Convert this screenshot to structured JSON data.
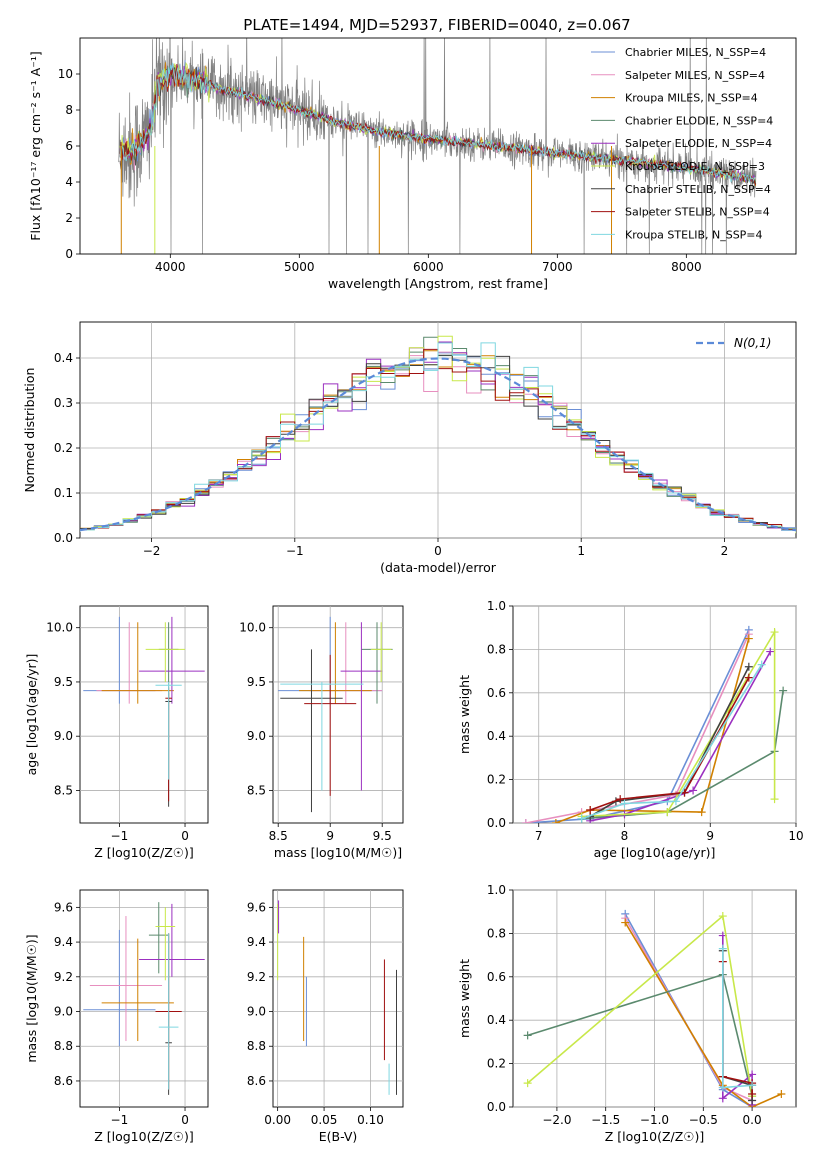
{
  "figure": {
    "title": "PLATE=1494, MJD=52937, FIBERID=0040, z=0.067"
  },
  "chart_data": [
    {
      "id": "spectrum",
      "type": "line",
      "xlabel": "wavelength [Angstrom, rest frame]",
      "ylabel": "Flux [fλ10⁻¹⁷ erg cm⁻² s⁻¹ A⁻¹]",
      "xlim": [
        3300,
        8850
      ],
      "ylim": [
        0,
        12
      ],
      "xticks": [
        4000,
        5000,
        6000,
        7000,
        8000
      ],
      "yticks": [
        0,
        2,
        4,
        6,
        8,
        10
      ],
      "grid": false,
      "legend_position": "top-right",
      "data_color": "#808080",
      "data_range": [
        3600,
        8540
      ],
      "continuum": {
        "x": [
          3600,
          3650,
          3700,
          3750,
          3800,
          3850,
          3900,
          3950,
          4000,
          4100,
          4200,
          4300,
          4400,
          4500,
          4700,
          5000,
          5300,
          5600,
          6000,
          6500,
          7000,
          7500,
          8000,
          8500,
          8540
        ],
        "y": [
          5.6,
          5.8,
          5.7,
          6.0,
          6.3,
          7.2,
          9.2,
          9.8,
          10.0,
          9.8,
          9.7,
          9.4,
          9.1,
          9.0,
          8.6,
          8.0,
          7.3,
          6.8,
          6.4,
          6.0,
          5.6,
          5.2,
          4.8,
          4.2,
          4.0
        ]
      },
      "series": [
        {
          "name": "Chabrier MILES, N_SSP=4",
          "color": "#6b8fd6"
        },
        {
          "name": "Salpeter MILES, N_SSP=4",
          "color": "#e78fbf"
        },
        {
          "name": "Kroupa MILES, N_SSP=4",
          "color": "#d08000"
        },
        {
          "name": "Chabrier ELODIE, N_SSP=4",
          "color": "#5b8a6e"
        },
        {
          "name": "Salpeter ELODIE, N_SSP=4",
          "color": "#9b30c0"
        },
        {
          "name": "Kroupa ELODIE, N_SSP=3",
          "color": "#c8e84a"
        },
        {
          "name": "Chabrier STELIB, N_SSP=4",
          "color": "#404040"
        },
        {
          "name": "Salpeter STELIB, N_SSP=4",
          "color": "#a01010"
        },
        {
          "name": "Kroupa STELIB, N_SSP=4",
          "color": "#7fd7e0"
        }
      ]
    },
    {
      "id": "residuals",
      "type": "bar",
      "xlabel": "(data-model)/error",
      "ylabel": "Normed distribution",
      "xlim": [
        -2.5,
        2.5
      ],
      "ylim": [
        0,
        0.48
      ],
      "xticks": [
        -2,
        -1,
        0,
        1,
        2
      ],
      "yticks": [
        0.0,
        0.1,
        0.2,
        0.3,
        0.4
      ],
      "grid": true,
      "legend_position": "top-right",
      "bin_width": 0.1,
      "gaussian": {
        "name": "N(0,1)",
        "color": "#5b8ad8",
        "mu": 0,
        "sigma": 1
      }
    },
    {
      "id": "age_vs_Z",
      "type": "scatter",
      "xlabel": "Z [log10(Z/Z☉)]",
      "ylabel": "age  [log10(age/yr)]",
      "xlim": [
        -1.6,
        0.35
      ],
      "ylim": [
        8.2,
        10.2
      ],
      "xticks": [
        -1,
        0
      ],
      "yticks": [
        8.5,
        9.0,
        9.5,
        10.0
      ],
      "grid": true,
      "points": [
        {
          "x": -1.0,
          "y": 9.42,
          "xerr": 0.55,
          "yerr": [
            9.3,
            10.1
          ],
          "color": "#6b8fd6"
        },
        {
          "x": -0.85,
          "y": 9.42,
          "xerr": 0.5,
          "yerr": [
            9.3,
            10.05
          ],
          "color": "#e78fbf"
        },
        {
          "x": -0.72,
          "y": 9.42,
          "xerr": 0.55,
          "yerr": [
            9.3,
            10.05
          ],
          "color": "#d08000"
        },
        {
          "x": -0.25,
          "y": 9.8,
          "xerr": 0.15,
          "yerr": [
            9.3,
            10.05
          ],
          "color": "#5b8a6e"
        },
        {
          "x": -0.2,
          "y": 9.6,
          "xerr": 0.5,
          "yerr": [
            9.3,
            10.1
          ],
          "color": "#9b30c0"
        },
        {
          "x": -0.3,
          "y": 9.8,
          "xerr": 0.3,
          "yerr": [
            9.5,
            10.05
          ],
          "color": "#c8e84a"
        },
        {
          "x": -0.25,
          "y": 9.32,
          "xerr": 0.05,
          "yerr": [
            8.35,
            9.4
          ],
          "color": "#404040"
        },
        {
          "x": -0.25,
          "y": 9.35,
          "xerr": 0.05,
          "yerr": [
            8.4,
            9.45
          ],
          "color": "#a01010"
        },
        {
          "x": -0.25,
          "y": 9.47,
          "xerr": 0.2,
          "yerr": [
            8.6,
            9.5
          ],
          "color": "#7fd7e0"
        }
      ]
    },
    {
      "id": "age_vs_mass",
      "type": "scatter",
      "xlabel": "mass [log10(M/M☉)]",
      "ylabel": "",
      "xlim": [
        8.45,
        9.7
      ],
      "ylim": [
        8.2,
        10.2
      ],
      "xticks": [
        8.5,
        9.0,
        9.5
      ],
      "yticks": [
        8.5,
        9.0,
        9.5,
        10.0
      ],
      "grid": true,
      "points": [
        {
          "x": 9.0,
          "y": 9.42,
          "xerr": 0.5,
          "yerr": [
            9.3,
            10.1
          ],
          "color": "#6b8fd6"
        },
        {
          "x": 9.15,
          "y": 9.42,
          "xerr": 0.35,
          "yerr": [
            9.3,
            10.05
          ],
          "color": "#e78fbf"
        },
        {
          "x": 9.05,
          "y": 9.42,
          "xerr": 0.35,
          "yerr": [
            9.3,
            10.05
          ],
          "color": "#d08000"
        },
        {
          "x": 9.45,
          "y": 9.8,
          "xerr": 0.15,
          "yerr": [
            9.3,
            10.05
          ],
          "color": "#5b8a6e"
        },
        {
          "x": 9.3,
          "y": 9.6,
          "xerr": 0.2,
          "yerr": [
            8.5,
            10.05
          ],
          "color": "#9b30c0"
        },
        {
          "x": 9.49,
          "y": 9.8,
          "xerr": 0.1,
          "yerr": [
            9.5,
            10.05
          ],
          "color": "#c8e84a"
        },
        {
          "x": 8.82,
          "y": 9.35,
          "xerr": 0.3,
          "yerr": [
            8.3,
            9.8
          ],
          "color": "#404040"
        },
        {
          "x": 9.0,
          "y": 9.3,
          "xerr": 0.25,
          "yerr": [
            8.45,
            9.75
          ],
          "color": "#a01010"
        },
        {
          "x": 8.92,
          "y": 9.48,
          "xerr": 0.4,
          "yerr": [
            8.5,
            9.5
          ],
          "color": "#7fd7e0"
        }
      ]
    },
    {
      "id": "weight_vs_age",
      "type": "line",
      "xlabel": "age  [log10(age/yr)]",
      "ylabel": "mass weight",
      "xlim": [
        6.7,
        10.0
      ],
      "ylim": [
        0,
        1.0
      ],
      "xticks": [
        7,
        8,
        9,
        10
      ],
      "yticks": [
        0.0,
        0.2,
        0.4,
        0.6,
        0.8,
        1.0
      ],
      "grid": true,
      "series": [
        {
          "color": "#6b8fd6",
          "x": [
            6.85,
            7.6,
            8.5,
            9.45
          ],
          "y": [
            0.0,
            0.02,
            0.1,
            0.89
          ]
        },
        {
          "color": "#e78fbf",
          "x": [
            6.85,
            7.5,
            8.6,
            9.45
          ],
          "y": [
            0.0,
            0.05,
            0.13,
            0.87
          ]
        },
        {
          "color": "#d08000",
          "x": [
            7.2,
            7.6,
            8.9,
            9.45
          ],
          "y": [
            0.0,
            0.06,
            0.05,
            0.85
          ]
        },
        {
          "color": "#5b8a6e",
          "x": [
            7.5,
            8.5,
            9.75,
            9.85
          ],
          "y": [
            0.02,
            0.05,
            0.33,
            0.61
          ]
        },
        {
          "color": "#9b30c0",
          "x": [
            7.6,
            8.0,
            8.8,
            9.7
          ],
          "y": [
            0.01,
            0.04,
            0.15,
            0.79
          ]
        },
        {
          "color": "#c8e84a",
          "x": [
            7.5,
            8.5,
            9.75,
            9.75
          ],
          "y": [
            0.03,
            0.05,
            0.88,
            0.11
          ]
        },
        {
          "color": "#404040",
          "x": [
            7.6,
            7.9,
            8.7,
            9.45
          ],
          "y": [
            0.03,
            0.1,
            0.14,
            0.72
          ]
        },
        {
          "color": "#a01010",
          "x": [
            7.6,
            7.95,
            8.7,
            9.45
          ],
          "y": [
            0.06,
            0.11,
            0.14,
            0.67
          ]
        },
        {
          "color": "#7fd7e0",
          "x": [
            7.5,
            8.0,
            8.6,
            9.6
          ],
          "y": [
            0.02,
            0.09,
            0.1,
            0.73
          ]
        }
      ]
    },
    {
      "id": "mass_vs_Z",
      "type": "scatter",
      "xlabel": "Z [log10(Z/Z☉)]",
      "ylabel": "mass [log10(M/M☉)]",
      "xlim": [
        -1.6,
        0.35
      ],
      "ylim": [
        8.45,
        9.7
      ],
      "xticks": [
        -1,
        0
      ],
      "yticks": [
        8.6,
        8.8,
        9.0,
        9.2,
        9.4,
        9.6
      ],
      "grid": true,
      "points": [
        {
          "x": -1.0,
          "y": 9.01,
          "xerr": 0.55,
          "yerr": [
            8.8,
            9.47
          ],
          "color": "#6b8fd6"
        },
        {
          "x": -0.9,
          "y": 9.15,
          "xerr": 0.55,
          "yerr": [
            8.83,
            9.55
          ],
          "color": "#e78fbf"
        },
        {
          "x": -0.72,
          "y": 9.05,
          "xerr": 0.55,
          "yerr": [
            8.83,
            9.42
          ],
          "color": "#d08000"
        },
        {
          "x": -0.4,
          "y": 9.44,
          "xerr": 0.15,
          "yerr": [
            9.22,
            9.63
          ],
          "color": "#5b8a6e"
        },
        {
          "x": -0.2,
          "y": 9.3,
          "xerr": 0.5,
          "yerr": [
            9.2,
            9.62
          ],
          "color": "#9b30c0"
        },
        {
          "x": -0.3,
          "y": 9.49,
          "xerr": 0.15,
          "yerr": [
            9.18,
            9.6
          ],
          "color": "#c8e84a"
        },
        {
          "x": -0.25,
          "y": 8.82,
          "xerr": 0.05,
          "yerr": [
            8.52,
            9.45
          ],
          "color": "#404040"
        },
        {
          "x": -0.25,
          "y": 9.0,
          "xerr": 0.2,
          "yerr": [
            8.55,
            9.45
          ],
          "color": "#a01010"
        },
        {
          "x": -0.25,
          "y": 8.91,
          "xerr": 0.15,
          "yerr": [
            8.55,
            9.45
          ],
          "color": "#7fd7e0"
        }
      ]
    },
    {
      "id": "mass_vs_EBV",
      "type": "scatter",
      "xlabel": "E(B-V)",
      "ylabel": "",
      "xlim": [
        -0.005,
        0.135
      ],
      "ylim": [
        8.45,
        9.7
      ],
      "xticks": [
        0.0,
        0.05,
        0.1
      ],
      "xticklabels": [
        "0.00",
        "0.05",
        "0.10"
      ],
      "yticks": [
        8.6,
        8.8,
        9.0,
        9.2,
        9.4,
        9.6
      ],
      "grid": true,
      "segments": [
        {
          "x": 0.0,
          "y": [
            9.18,
            9.62
          ],
          "color": "#c8e84a"
        },
        {
          "x": 0.001,
          "y": [
            9.45,
            9.64
          ],
          "color": "#9b30c0"
        },
        {
          "x": 0.028,
          "y": [
            8.83,
            9.43
          ],
          "color": "#d08000"
        },
        {
          "x": 0.031,
          "y": [
            8.8,
            9.2
          ],
          "color": "#6b8fd6"
        },
        {
          "x": 0.115,
          "y": [
            8.72,
            9.3
          ],
          "color": "#a01010"
        },
        {
          "x": 0.12,
          "y": [
            8.52,
            8.7
          ],
          "color": "#7fd7e0"
        },
        {
          "x": 0.128,
          "y": [
            8.52,
            9.24
          ],
          "color": "#404040"
        }
      ]
    },
    {
      "id": "weight_vs_Z",
      "type": "line",
      "xlabel": "Z [log10(Z/Z☉)]",
      "ylabel": "mass weight",
      "xlim": [
        -2.45,
        0.45
      ],
      "ylim": [
        0,
        1.0
      ],
      "xticks": [
        -2.0,
        -1.5,
        -1.0,
        -0.5,
        0.0
      ],
      "xticklabels": [
        "−2.0",
        "−1.5",
        "−1.0",
        "−0.5",
        "0.0"
      ],
      "yticks": [
        0.0,
        0.2,
        0.4,
        0.6,
        0.8,
        1.0
      ],
      "grid": true,
      "series": [
        {
          "color": "#6b8fd6",
          "x": [
            -1.3,
            -0.3,
            0.0
          ],
          "y": [
            0.89,
            0.08,
            0.0
          ]
        },
        {
          "color": "#e78fbf",
          "x": [
            -1.3,
            -0.3,
            0.0
          ],
          "y": [
            0.87,
            0.09,
            0.03
          ]
        },
        {
          "color": "#d08000",
          "x": [
            -1.3,
            -0.3,
            0.0,
            0.3
          ],
          "y": [
            0.85,
            0.1,
            0.0,
            0.06
          ]
        },
        {
          "color": "#5b8a6e",
          "x": [
            -2.3,
            -0.3,
            0.0
          ],
          "y": [
            0.33,
            0.61,
            0.05
          ]
        },
        {
          "color": "#9b30c0",
          "x": [
            -0.3,
            -0.3,
            0.0,
            0.0
          ],
          "y": [
            0.79,
            0.04,
            0.15,
            0.01
          ]
        },
        {
          "color": "#c8e84a",
          "x": [
            -2.3,
            -0.3,
            0.0
          ],
          "y": [
            0.11,
            0.88,
            0.05
          ]
        },
        {
          "color": "#404040",
          "x": [
            -0.3,
            -0.3,
            0.0,
            0.0
          ],
          "y": [
            0.72,
            0.14,
            0.1,
            0.03
          ]
        },
        {
          "color": "#a01010",
          "x": [
            -0.3,
            -0.3,
            0.0,
            0.0
          ],
          "y": [
            0.67,
            0.14,
            0.11,
            0.06
          ]
        },
        {
          "color": "#7fd7e0",
          "x": [
            -0.3,
            -0.3,
            0.0
          ],
          "y": [
            0.73,
            0.09,
            0.1
          ]
        }
      ]
    }
  ]
}
